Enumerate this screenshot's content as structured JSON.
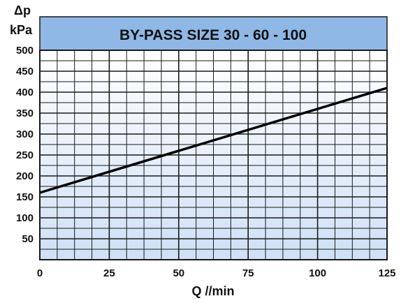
{
  "chart_data": {
    "type": "line",
    "title": "BY-PASS SIZE 30 - 60 - 100",
    "ylabel_symbol": "Δp",
    "ylabel_unit": "kPa",
    "xlabel": "Q  //min",
    "xlim": [
      0,
      125
    ],
    "ylim": [
      0,
      500
    ],
    "x_ticks": [
      0,
      25,
      50,
      75,
      100,
      125
    ],
    "y_ticks": [
      50,
      100,
      150,
      200,
      250,
      300,
      350,
      400,
      450,
      500
    ],
    "x_minor_step": 6.25,
    "y_minor_step": 25,
    "grid": true,
    "series": [
      {
        "x": [
          0,
          125
        ],
        "y": [
          160,
          410
        ]
      }
    ],
    "colors": {
      "title_band": "#8fb8e6",
      "plot_background_top": "#ffffff",
      "plot_background_bottom": "#cfe0f6",
      "grid": "#1a1a1a",
      "line": "#000000",
      "text": "#111111"
    }
  }
}
